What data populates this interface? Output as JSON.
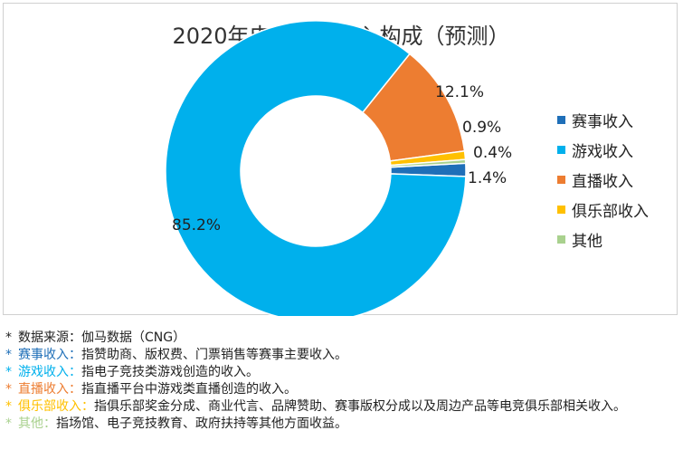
{
  "chart_data": {
    "type": "pie",
    "title": "2020年电竞产业收入构成（预测）",
    "categories": [
      "赛事收入",
      "游戏收入",
      "直播收入",
      "俱乐部收入",
      "其他"
    ],
    "values": [
      1.4,
      85.2,
      12.1,
      0.9,
      0.4
    ],
    "labels": [
      "1.4%",
      "85.2%",
      "12.1%",
      "0.9%",
      "0.4%"
    ],
    "colors": [
      "#1f6fb8",
      "#00b0ec",
      "#ed7d31",
      "#ffc000",
      "#a9d18e"
    ],
    "legend_position": "right",
    "donut": true
  },
  "notes": {
    "source": "数据来源：伽马数据（CNG）",
    "items": [
      {
        "term": "赛事收入：",
        "desc": "指赞助商、版权费、门票销售等赛事主要收入。",
        "color": "#1f6fb8"
      },
      {
        "term": "游戏收入：",
        "desc": "指电子竞技类游戏创造的收入。",
        "color": "#00b0ec"
      },
      {
        "term": "直播收入：",
        "desc": "指直播平台中游戏类直播创造的收入。",
        "color": "#ed7d31"
      },
      {
        "term": "俱乐部收入：",
        "desc": "指俱乐部奖金分成、商业代言、品牌赞助、赛事版权分成以及周边产品等电竞俱乐部相关收入。",
        "color": "#ffc000"
      },
      {
        "term": "其他：",
        "desc": "指场馆、电子竞技教育、政府扶持等其他方面收益。",
        "color": "#a9d18e"
      }
    ]
  }
}
